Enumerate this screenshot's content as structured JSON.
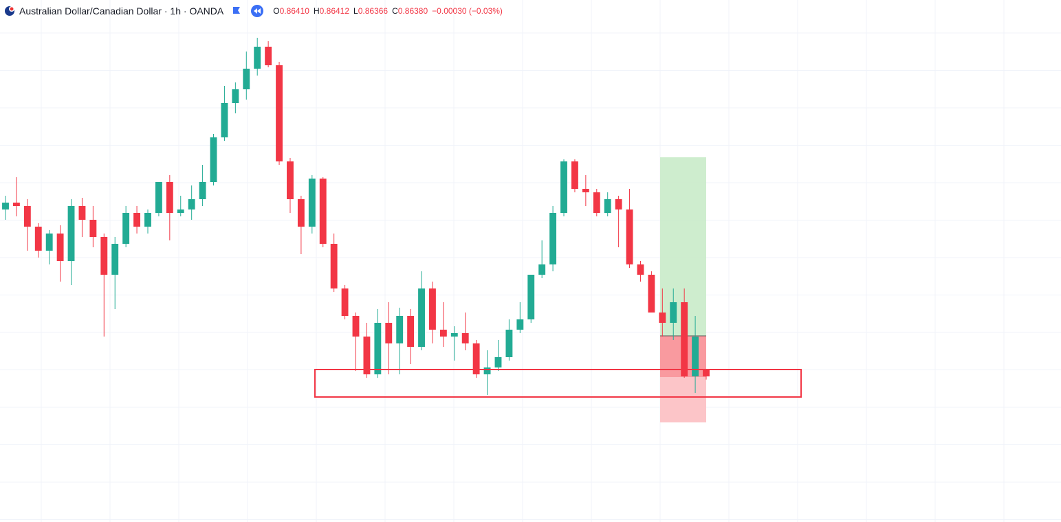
{
  "chart_data": {
    "type": "candlestick",
    "title": "Australian Dollar/Canadian Dollar · 1h · OANDA",
    "legend": {
      "open_label": "O",
      "open": "0.86410",
      "high_label": "H",
      "high": "0.86412",
      "low_label": "L",
      "low": "0.86366",
      "close_label": "C",
      "close": "0.86380",
      "change": "−0.00030 (−0.03%)"
    },
    "up_color": "#22ab94",
    "down_color": "#f23645",
    "ylim": [
      0.85744,
      0.88024
    ],
    "grid": true,
    "open": [
      0.87109,
      0.87139,
      0.87124,
      0.87034,
      0.86929,
      0.87004,
      0.86884,
      0.87124,
      0.87064,
      0.86989,
      0.86824,
      0.86959,
      0.87094,
      0.87034,
      0.87094,
      0.87229,
      0.87094,
      0.87109,
      0.87154,
      0.87229,
      0.87424,
      0.87574,
      0.87634,
      0.87724,
      0.8782,
      0.87739,
      0.87319,
      0.87154,
      0.87034,
      0.87244,
      0.86959,
      0.86764,
      0.86644,
      0.86554,
      0.86389,
      0.86614,
      0.86524,
      0.86644,
      0.86509,
      0.86764,
      0.86584,
      0.86554,
      0.86569,
      0.86524,
      0.86389,
      0.86419,
      0.86464,
      0.86584,
      0.86629,
      0.86824,
      0.86869,
      0.87094,
      0.87319,
      0.87199,
      0.87184,
      0.87094,
      0.87154,
      0.87109,
      0.86869,
      0.86824,
      0.86659,
      0.86614,
      0.86704,
      0.8638,
      0.8641
    ],
    "high": [
      0.87169,
      0.8725,
      0.87154,
      0.87049,
      0.87019,
      0.8704,
      0.87154,
      0.8716,
      0.87124,
      0.87004,
      0.86989,
      0.87124,
      0.87124,
      0.87109,
      0.87229,
      0.87259,
      0.87169,
      0.87214,
      0.87304,
      0.87439,
      0.87649,
      0.87664,
      0.87799,
      0.87859,
      0.87844,
      0.87754,
      0.87334,
      0.87169,
      0.87259,
      0.8725,
      0.87004,
      0.86779,
      0.86659,
      0.86614,
      0.86674,
      0.86704,
      0.8668,
      0.86674,
      0.86839,
      0.86794,
      0.86704,
      0.86599,
      0.86659,
      0.86539,
      0.86494,
      0.86539,
      0.86629,
      0.86704,
      0.86824,
      0.86974,
      0.87124,
      0.87328,
      0.87328,
      0.87259,
      0.87199,
      0.87184,
      0.87169,
      0.87199,
      0.86884,
      0.86839,
      0.86764,
      0.86764,
      0.86764,
      0.86644,
      0.86412
    ],
    "low": [
      0.87064,
      0.87079,
      0.86929,
      0.86899,
      0.86869,
      0.86794,
      0.86779,
      0.86989,
      0.86944,
      0.86554,
      0.86674,
      0.86944,
      0.87004,
      0.87004,
      0.87079,
      0.86974,
      0.87079,
      0.87064,
      0.87124,
      0.87214,
      0.87409,
      0.87529,
      0.87589,
      0.87694,
      0.8773,
      0.87304,
      0.87094,
      0.86914,
      0.87004,
      0.86944,
      0.86749,
      0.86629,
      0.86404,
      0.86374,
      0.86374,
      0.86389,
      0.86389,
      0.86434,
      0.86494,
      0.86524,
      0.86509,
      0.86449,
      0.86494,
      0.86374,
      0.86299,
      0.86404,
      0.86449,
      0.86569,
      0.86614,
      0.86809,
      0.86839,
      0.87079,
      0.87184,
      0.87124,
      0.87079,
      0.87079,
      0.86944,
      0.86854,
      0.86794,
      0.86659,
      0.86554,
      0.86539,
      0.86374,
      0.86308,
      0.86366
    ],
    "close": [
      0.87139,
      0.87124,
      0.87034,
      0.86929,
      0.87004,
      0.86884,
      0.87124,
      0.87064,
      0.86989,
      0.86824,
      0.86959,
      0.87094,
      0.87034,
      0.87094,
      0.87229,
      0.87094,
      0.87109,
      0.87154,
      0.87229,
      0.87424,
      0.87574,
      0.87634,
      0.87724,
      0.8782,
      0.87739,
      0.87319,
      0.87154,
      0.87034,
      0.87244,
      0.86959,
      0.86764,
      0.86644,
      0.86554,
      0.86389,
      0.86614,
      0.86524,
      0.86644,
      0.86509,
      0.86764,
      0.86584,
      0.86554,
      0.86569,
      0.86524,
      0.86389,
      0.86419,
      0.86464,
      0.86584,
      0.86629,
      0.86824,
      0.86869,
      0.87094,
      0.87319,
      0.87199,
      0.87184,
      0.87094,
      0.87154,
      0.87109,
      0.86869,
      0.86824,
      0.86659,
      0.86614,
      0.86704,
      0.8638,
      0.86554,
      0.8638
    ]
  }
}
